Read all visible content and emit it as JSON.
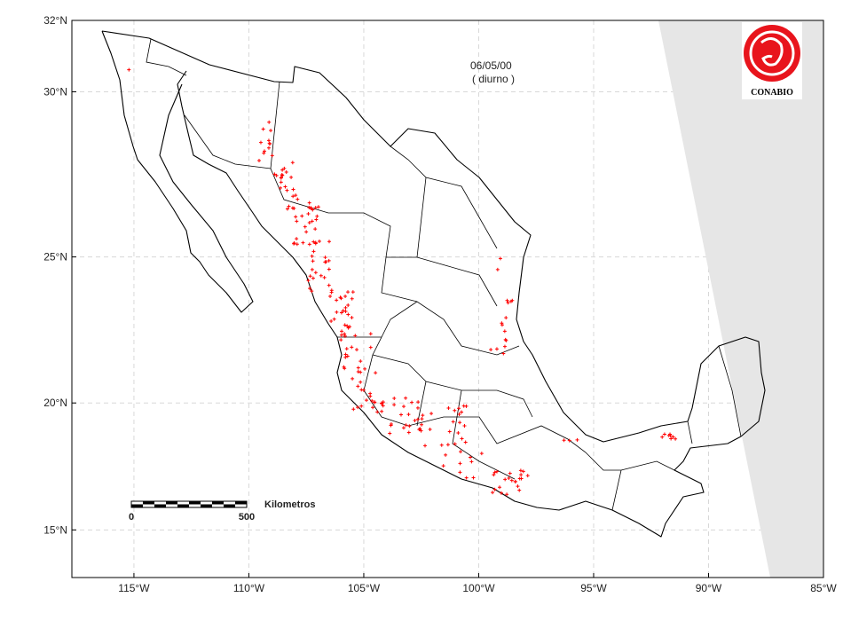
{
  "map": {
    "date": "06/05/00",
    "period": "( diurno )",
    "logo_text": "CONABIO",
    "scale_bar": {
      "start": 0,
      "end": 500,
      "unit": "Kilometros"
    },
    "xlim": [
      -117.7,
      -85
    ],
    "ylim": [
      12.9,
      32
    ],
    "xticks": [
      {
        "value": -115,
        "label": "115°W"
      },
      {
        "value": -110,
        "label": "110°W"
      },
      {
        "value": -105,
        "label": "105°W"
      },
      {
        "value": -100,
        "label": "100°W"
      },
      {
        "value": -95,
        "label": "95°W"
      },
      {
        "value": -90,
        "label": "90°W"
      },
      {
        "value": -85,
        "label": "85°W"
      }
    ],
    "yticks": [
      {
        "value": 15,
        "label": "15°N"
      },
      {
        "value": 20,
        "label": "20°N"
      },
      {
        "value": 25,
        "label": "25°N"
      },
      {
        "value": 30,
        "label": "30°N"
      },
      {
        "value": 32,
        "label": "32°N"
      }
    ],
    "grid": true
  }
}
